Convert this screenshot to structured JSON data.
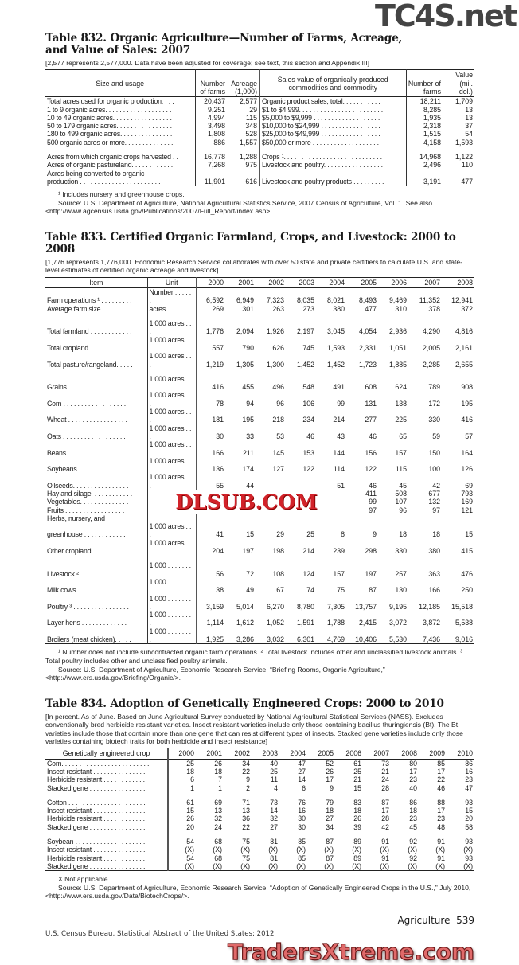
{
  "t832": {
    "title": "Table 832. Organic Agriculture—Number of Farms, Acreage, and Value of Sales: 2007",
    "headnote": "[2,577 represents 2,577,000. Data have been adjusted for coverage; see text, this section and Appendix III]",
    "headers": [
      "Size and usage",
      "Number of farms",
      "Acreage (1,000)",
      "Sales value of organically produced commodities and commodity",
      "Number of farms",
      "Value (mil. dol.)"
    ],
    "rows": [
      [
        "Total acres used for organic production. . . .",
        "20,437",
        "2,577",
        "Organic product sales, total. . . . . . . . . . .",
        "18,211",
        "1,709"
      ],
      [
        "1 to 9 organic acres. . . . . . . . . . . . . . . . . . .",
        "9,251",
        "29",
        "$1 to $4,999. . . . . . . . . . . . . . . . . . . . . . . .",
        "8,285",
        "13"
      ],
      [
        "10 to 49 organic acres. . . . . . . . . . . . . . . . .",
        "4,994",
        "115",
        "$5,000 to $9,999 . . . . . . . . . . . . . . . . . . .",
        "1,935",
        "13"
      ],
      [
        "50 to 179 organic acres. . . . . . . . . . . . . . . .",
        "3,498",
        "348",
        "$10,000 to $24,999 . . . . . . . . . . . . . . . . .",
        "2,318",
        "37"
      ],
      [
        "180 to 499 organic acres. . . . . . . . . . . . . . .",
        "1,808",
        "528",
        "$25,000 to $49,999 . . . . . . . . . . . . . . . . .",
        "1,515",
        "54"
      ],
      [
        "500 organic acres or more. . . . . . . . . . . . . .",
        "886",
        "1,557",
        "$50,000 or more . . . . . . . . . . . . . . . . . . .",
        "4,158",
        "1,593"
      ],
      [],
      [
        "Acres from which organic crops harvested . .",
        "16,778",
        "1,288",
        "Crops ¹. . . . . . . . . . . . . . . . . . . . . . . . . . . .",
        "14,968",
        "1,122"
      ],
      [
        "Acres of organic pastureland. . . . . . . . . . . .",
        "7,268",
        "975",
        "Livestock and poultry. . . . . . . . . . . . . . . . .",
        "2,496",
        "110"
      ],
      [
        "Acres being converted to organic",
        "",
        "",
        "",
        "",
        ""
      ],
      [
        "  production . . . . . . . . . . . . . . . . . . . . . . .",
        "11,901",
        "616",
        "Livestock and poultry products . . . . . . . . .",
        "3,191",
        "477"
      ]
    ],
    "footnotes": [
      "¹ Includes nursery and greenhouse crops.",
      "Source: U.S. Department of Agriculture, National Agricultural Statistics Service, 2007 Census of Agriculture, Vol. 1. See also <http://www.agcensus.usda.gov/Publications/2007/Full_Report/index.asp>."
    ]
  },
  "t833": {
    "title": "Table 833. Certified Organic Farmland, Crops, and Livestock: 2000 to 2008",
    "headnote": "[1,776 represents 1,776,000. Economic Research Service collaborates with over 50 state and private certifiers to calculate U.S. and state-level estimates of certified organic acreage and livestock]",
    "headers": [
      "Item",
      "Unit",
      "2000",
      "2001",
      "2002",
      "2003",
      "2004",
      "2005",
      "2006",
      "2007",
      "2008"
    ],
    "rows": [
      [
        "Farm operations ¹ . . . . . . . . .",
        "Number . . . . . .",
        "6,592",
        "6,949",
        "7,323",
        "8,035",
        "8,021",
        "8,493",
        "9,469",
        "11,352",
        "12,941"
      ],
      [
        "Average farm size . . . . . . . . .",
        "acres . . . . . . . .",
        "269",
        "301",
        "263",
        "273",
        "380",
        "477",
        "310",
        "378",
        "372"
      ],
      [],
      [
        "Total farmland . . . . . . . . . . . .",
        "1,000 acres . . .",
        "1,776",
        "2,094",
        "1,926",
        "2,197",
        "3,045",
        "4,054",
        "2,936",
        "4,290",
        "4,816"
      ],
      [
        "Total cropland . . . . . . . . . . . .",
        "1,000 acres . . .",
        "557",
        "790",
        "626",
        "745",
        "1,593",
        "2,331",
        "1,051",
        "2,005",
        "2,161"
      ],
      [
        "Total pasture/rangeland. . . . .",
        "1,000 acres . . .",
        "1,219",
        "1,305",
        "1,300",
        "1,452",
        "1,452",
        "1,723",
        "1,885",
        "2,285",
        "2,655"
      ],
      [],
      [
        "Grains . . . . . . . . . . . . . . . . . .",
        "1,000 acres . . .",
        "416",
        "455",
        "496",
        "548",
        "491",
        "608",
        "624",
        "789",
        "908"
      ],
      [
        " Corn . . . . . . . . . . . . . . . . . .",
        "1,000 acres . . .",
        "78",
        "94",
        "96",
        "106",
        "99",
        "131",
        "138",
        "172",
        "195"
      ],
      [
        " Wheat . . . . . . . . . . . . . . . . .",
        "1,000 acres . . .",
        "181",
        "195",
        "218",
        "234",
        "214",
        "277",
        "225",
        "330",
        "416"
      ],
      [
        " Oats . . . . . . . . . . . . . . . . . .",
        "1,000 acres . . .",
        "30",
        "33",
        "53",
        "46",
        "43",
        "46",
        "65",
        "59",
        "57"
      ],
      [
        "Beans . . . . . . . . . . . . . . . . . .",
        "1,000 acres . . .",
        "166",
        "211",
        "145",
        "153",
        "144",
        "156",
        "157",
        "150",
        "164"
      ],
      [
        " Soybeans . . . . . . . . . . . . . . .",
        "1,000 acres . . .",
        "136",
        "174",
        "127",
        "122",
        "114",
        "122",
        "115",
        "100",
        "126"
      ],
      [
        "Oilseeds. . . . . . . . . . . . . . . . .",
        "1,000 acres . . .",
        "55",
        "44",
        "",
        "",
        "51",
        "46",
        "45",
        "42",
        "69"
      ],
      [
        "Hay and silage. . . . . . . . . . . .",
        "",
        "",
        "",
        "",
        "",
        "",
        "411",
        "508",
        "677",
        "793"
      ],
      [
        "Vegetables. . . . . . . . . . . . . . .",
        "",
        "",
        "",
        "",
        "",
        "",
        "99",
        "107",
        "132",
        "169"
      ],
      [
        "Fruits . . . . . . . . . . . . . . . . . .",
        "",
        "",
        "",
        "",
        "",
        "",
        "97",
        "96",
        "97",
        "121"
      ],
      [
        "Herbs, nursery, and",
        "",
        "",
        "",
        "",
        "",
        "",
        "",
        "",
        "",
        ""
      ],
      [
        "  greenhouse . . . . . . . . . . . .",
        "1,000 acres . . .",
        "41",
        "15",
        "29",
        "25",
        "8",
        "9",
        "18",
        "18",
        "15"
      ],
      [
        "Other cropland. . . . . . . . . . . .",
        "1,000 acres . . .",
        "204",
        "197",
        "198",
        "214",
        "239",
        "298",
        "330",
        "380",
        "415"
      ],
      [],
      [
        "Livestock ² . . . . . . . . . . . . . . .",
        "1,000 . . . . . . . .",
        "56",
        "72",
        "108",
        "124",
        "157",
        "197",
        "257",
        "363",
        "476"
      ],
      [
        " Milk cows . . . . . . . . . . . . . .",
        "1,000 . . . . . . . .",
        "38",
        "49",
        "67",
        "74",
        "75",
        "87",
        "130",
        "166",
        "250"
      ],
      [
        "Poultry ³ . . . . . . . . . . . . . . . .",
        "1,000 . . . . . . . .",
        "3,159",
        "5,014",
        "6,270",
        "8,780",
        "7,305",
        "13,757",
        "9,195",
        "12,185",
        "15,518"
      ],
      [
        " Layer hens . . . . . . . . . . . . .",
        "1,000 . . . . . . . .",
        "1,114",
        "1,612",
        "1,052",
        "1,591",
        "1,788",
        "2,415",
        "3,072",
        "3,872",
        "5,538"
      ],
      [
        " Broilers (meat chicken). . . . .",
        "1,000 . . . . . . . .",
        "1,925",
        "3,286",
        "3,032",
        "6,301",
        "4,769",
        "10,406",
        "5,530",
        "7,436",
        "9,016"
      ]
    ],
    "footnotes": [
      "¹ Number does not include subcontracted organic farm operations. ² Total livestock includes other and unclassified livestock animals. ³ Total poultry includes other and unclassified poultry animals.",
      "Source: U.S. Department of Agriculture, Economic Research Service, “Briefing Rooms, Organic Agriculture,” <http://www.ers.usda.gov/Briefing/Organic/>."
    ]
  },
  "t834": {
    "title": "Table 834. Adoption of Genetically Engineered Crops: 2000 to 2010",
    "headnote": "[In percent. As of June. Based on June Agricultural Survey conducted by National Agricultural Statistical Services (NASS). Excludes conventionally bred herbicide resistant varieties. Insect resistant varieties include only those containing bacillus thuringiensis (Bt). The Bt varieties include those that contain more than one gene that can resist different types of insects. Stacked gene varieties include only those varieties containing biotech traits for both herbicide and insect resistance]",
    "headers": [
      "Genetically engineered crop",
      "2000",
      "2001",
      "2002",
      "2003",
      "2004",
      "2005",
      "2006",
      "2007",
      "2008",
      "2009",
      "2010"
    ],
    "rows": [
      [
        "Corn. . . . . . . . . . . . . . . . . . . . . . . . .",
        "25",
        "26",
        "34",
        "40",
        "47",
        "52",
        "61",
        "73",
        "80",
        "85",
        "86"
      ],
      [
        " Insect resistant . . . . . . . . . . . . . . .",
        "18",
        "18",
        "22",
        "25",
        "27",
        "26",
        "25",
        "21",
        "17",
        "17",
        "16"
      ],
      [
        " Herbicide resistant . . . . . . . . . . . .",
        "6",
        "7",
        "9",
        "11",
        "14",
        "17",
        "21",
        "24",
        "23",
        "22",
        "23"
      ],
      [
        " Stacked gene . . . . . . . . . . . . . . . .",
        "1",
        "1",
        "2",
        "4",
        "6",
        "9",
        "15",
        "28",
        "40",
        "46",
        "47"
      ],
      [],
      [
        "Cotton . . . . . . . . . . . . . . . . . . . . . .",
        "61",
        "69",
        "71",
        "73",
        "76",
        "79",
        "83",
        "87",
        "86",
        "88",
        "93"
      ],
      [
        " Insect resistant . . . . . . . . . . . . . . .",
        "15",
        "13",
        "13",
        "14",
        "16",
        "18",
        "18",
        "17",
        "18",
        "17",
        "15"
      ],
      [
        " Herbicide resistant . . . . . . . . . . . .",
        "26",
        "32",
        "36",
        "32",
        "30",
        "27",
        "26",
        "28",
        "23",
        "23",
        "20"
      ],
      [
        " Stacked gene . . . . . . . . . . . . . . . .",
        "20",
        "24",
        "22",
        "27",
        "30",
        "34",
        "39",
        "42",
        "45",
        "48",
        "58"
      ],
      [],
      [
        "Soybean . . . . . . . . . . . . . . . . . . . .",
        "54",
        "68",
        "75",
        "81",
        "85",
        "87",
        "89",
        "91",
        "92",
        "91",
        "93"
      ],
      [
        " Insect resistant . . . . . . . . . . . . . . .",
        "(X)",
        "(X)",
        "(X)",
        "(X)",
        "(X)",
        "(X)",
        "(X)",
        "(X)",
        "(X)",
        "(X)",
        "(X)"
      ],
      [
        " Herbicide resistant . . . . . . . . . . . .",
        "54",
        "68",
        "75",
        "81",
        "85",
        "87",
        "89",
        "91",
        "92",
        "91",
        "93"
      ],
      [
        " Stacked gene . . . . . . . . . . . . . . . .",
        "(X)",
        "(X)",
        "(X)",
        "(X)",
        "(X)",
        "(X)",
        "(X)",
        "(X)",
        "(X)",
        "(X)",
        "(X)"
      ]
    ],
    "footnotes": [
      "X Not applicable.",
      "Source: U.S. Department of Agriculture, Economic Research Service, “Adoption of Genetically Engineered Crops in the U.S.,” July 2010, <http://www.ers.usda.gov/Data/BiotechCrops/>."
    ]
  },
  "footer": {
    "section": "Agriculture",
    "page": "539",
    "source": "U.S. Census Bureau, Statistical Abstract of the United States: 2012"
  },
  "watermarks": {
    "top": "TC4S.net",
    "middle": "DLSUB.COM",
    "bottom": "TradersXtreme.com"
  }
}
